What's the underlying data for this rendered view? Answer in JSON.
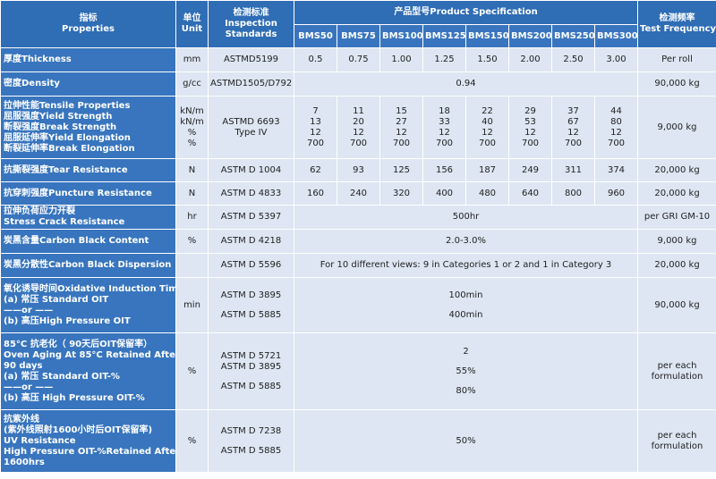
{
  "header": {
    "properties": [
      "指标",
      "Properties"
    ],
    "unit": [
      "单位",
      "Unit"
    ],
    "standards": [
      "检测标准",
      "Inspection",
      "Standards"
    ],
    "product_spec": "产品型号Product Specification",
    "frequency": [
      "检测频率",
      "Test Frequency"
    ],
    "models": [
      "BMS50",
      "BMS75",
      "BMS100",
      "BMS125",
      "BMS150",
      "BMS200",
      "BMS250",
      "BMS300"
    ]
  },
  "rows": {
    "thickness": {
      "name": "厚度Thickness",
      "unit": "mm",
      "std": "ASTMD5199",
      "values": [
        "0.5",
        "0.75",
        "1.00",
        "1.25",
        "1.50",
        "2.00",
        "2.50",
        "3.00"
      ],
      "freq": "Per roll"
    },
    "density": {
      "name": "密度Density",
      "unit": "g/cc",
      "std": "ASTMD1505/D792",
      "value": "0.94",
      "freq": "90,000 kg"
    },
    "tensile": {
      "names": [
        "拉伸性能Tensile Properties",
        "屈服强度Yield Strength",
        "断裂强度Break Strength",
        "屈服延伸率Yield Elongation",
        "断裂延伸率Break Elongation"
      ],
      "units": [
        "kN/m",
        "kN/m",
        "%",
        "%"
      ],
      "std": [
        "ASTMD 6693",
        "Type IV"
      ],
      "values": [
        [
          "7",
          "13",
          "12",
          "700"
        ],
        [
          "11",
          "20",
          "12",
          "700"
        ],
        [
          "15",
          "27",
          "12",
          "700"
        ],
        [
          "18",
          "33",
          "12",
          "700"
        ],
        [
          "22",
          "40",
          "12",
          "700"
        ],
        [
          "29",
          "53",
          "12",
          "700"
        ],
        [
          "37",
          "67",
          "12",
          "700"
        ],
        [
          "44",
          "80",
          "12",
          "700"
        ]
      ],
      "freq": "9,000 kg"
    },
    "tear": {
      "name": "抗撕裂强度Tear Resistance",
      "unit": "N",
      "std": "ASTM D 1004",
      "values": [
        "62",
        "93",
        "125",
        "156",
        "187",
        "249",
        "311",
        "374"
      ],
      "freq": "20,000 kg"
    },
    "puncture": {
      "name": "抗穿刺强度Puncture Resistance",
      "unit": "N",
      "std": "ASTM D 4833",
      "values": [
        "160",
        "240",
        "320",
        "400",
        "480",
        "640",
        "800",
        "960"
      ],
      "freq": "20,000 kg"
    },
    "stress_crack": {
      "names": [
        "拉伸负荷应力开裂",
        "Stress Crack Resistance"
      ],
      "unit": "hr",
      "std": "ASTM D 5397",
      "value": "500hr",
      "freq": "per GRI GM-10"
    },
    "carbon_content": {
      "name": "炭黑含量Carbon Black Content",
      "unit": "%",
      "std": "ASTM D 4218",
      "value": "2.0-3.0%",
      "freq": "9,000 kg"
    },
    "carbon_dispersion": {
      "name": "炭黑分散性Carbon Black Dispersion",
      "unit": "",
      "std": "ASTM D 5596",
      "value": "For 10 different views: 9 in Categories 1 or 2 and 1 in Category 3",
      "freq": "20,000 kg"
    },
    "oit": {
      "names": [
        "氧化诱导时间Oxidative Induction Time",
        "(a)  常压 Standard OIT",
        "——or ——",
        "(b)  高压High Pressure OIT"
      ],
      "unit": "min",
      "stds": [
        "ASTM D 3895",
        "ASTM D 5885"
      ],
      "values": [
        "100min",
        "400min"
      ],
      "freq": "90,000 kg"
    },
    "oven_aging": {
      "names": [
        "85°C 抗老化（ 90天后OIT保留率）",
        "Oven Aging At 85°C Retained After",
        "90 days",
        "(a)  常压 Standard OIT-%",
        "——or ——",
        "(b)  高压 High Pressure OIT-%"
      ],
      "unit": "%",
      "stds": [
        "ASTM D 5721",
        "ASTM D 3895",
        "ASTM D 5885"
      ],
      "values": [
        "2",
        "55%",
        "80%"
      ],
      "freq": [
        "per each",
        "formulation"
      ]
    },
    "uv": {
      "names": [
        "抗紫外线",
        "(紫外线照射1600小时后OIT保留率)",
        "UV Resistance",
        "High Pressure OIT-%Retained After",
        "1600hrs"
      ],
      "unit": "%",
      "stds": [
        "ASTM D 7238",
        "ASTM D 5885"
      ],
      "value": "50%",
      "freq": [
        "per each",
        "formulation"
      ]
    }
  }
}
